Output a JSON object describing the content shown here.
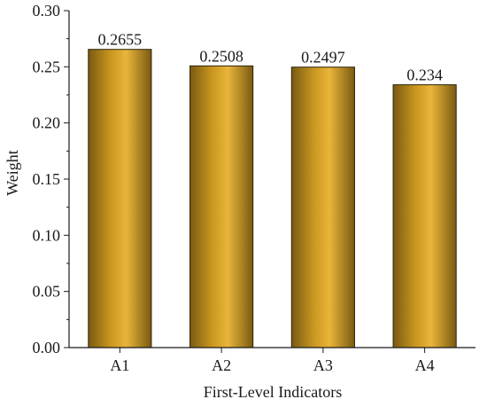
{
  "chart_data": {
    "type": "bar",
    "categories": [
      "A1",
      "A2",
      "A3",
      "A4"
    ],
    "values": [
      0.2655,
      0.2508,
      0.2497,
      0.234
    ],
    "data_labels": [
      "0.2655",
      "0.2508",
      "0.2497",
      "0.234"
    ],
    "xlabel": "First-Level Indicators",
    "ylabel": "Weight",
    "ylim": [
      0.0,
      0.3
    ],
    "yticks": [
      "0.00",
      "0.05",
      "0.10",
      "0.15",
      "0.20",
      "0.25",
      "0.30"
    ],
    "grid": false,
    "legend": "none",
    "colors": {
      "bar_dark": "#7a5a12",
      "bar_mid": "#c9961f",
      "bar_light": "#e9b53a",
      "bar_edge": "#2b2208",
      "axis": "#1a1a1a"
    }
  }
}
